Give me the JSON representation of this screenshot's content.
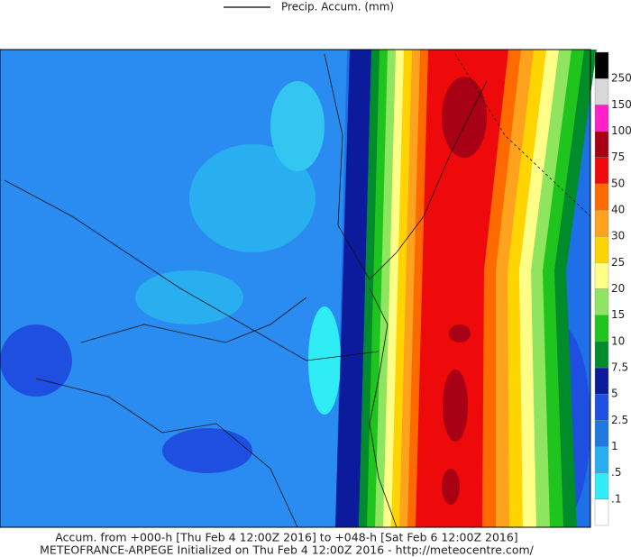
{
  "legend_title": "Precip. Accum. (mm)",
  "colorbar": {
    "labels": [
      ".1",
      ".5",
      "1",
      "2.5",
      "5",
      "7.5",
      "10",
      "15",
      "20",
      "25",
      "30",
      "40",
      "50",
      "75",
      "100",
      "150",
      "250"
    ],
    "colors": [
      "#ffffff",
      "#30ecf5",
      "#29aef0",
      "#1f78e0",
      "#1f4fe0",
      "#0b1b9c",
      "#008c2a",
      "#1fc41f",
      "#8fe460",
      "#ffff88",
      "#ffd400",
      "#ffa21e",
      "#ff6a00",
      "#ee0a0a",
      "#a80014",
      "#ff20cc",
      "#d8d8d8",
      "#000000"
    ]
  },
  "footer": {
    "line1": "Accum. from +000-h [Thu Feb 4 12:00Z 2016] to +048-h [Sat Feb 6 12:00Z 2016]",
    "line2": "METEOFRANCE-ARPEGE Initialized on Thu Feb 4 12:00Z 2016 - http://meteocentre.com/"
  }
}
